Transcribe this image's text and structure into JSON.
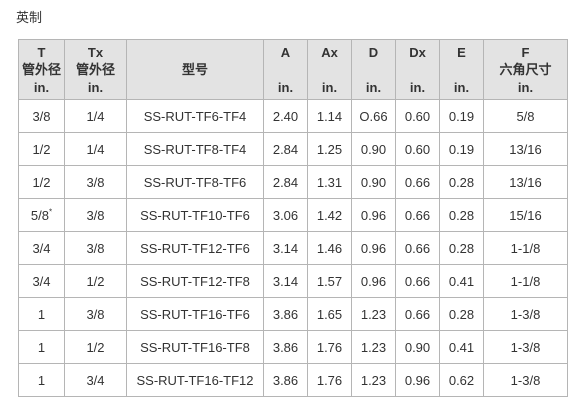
{
  "caption": "英制",
  "columns": [
    {
      "key": "t",
      "lines": [
        "T",
        "管外径",
        "in."
      ]
    },
    {
      "key": "tx",
      "lines": [
        "Tx",
        "管外径",
        "in."
      ]
    },
    {
      "key": "model",
      "lines": [
        "型号"
      ]
    },
    {
      "key": "a",
      "lines": [
        "A",
        "in."
      ]
    },
    {
      "key": "ax",
      "lines": [
        "Ax",
        "in."
      ]
    },
    {
      "key": "d",
      "lines": [
        "D",
        "in."
      ]
    },
    {
      "key": "dx",
      "lines": [
        "Dx",
        "in."
      ]
    },
    {
      "key": "e",
      "lines": [
        "E",
        "in."
      ]
    },
    {
      "key": "f",
      "lines": [
        "F",
        "六角尺寸",
        "in."
      ]
    }
  ],
  "rows": [
    {
      "t": "3/8",
      "t_mark": "",
      "tx": "1/4",
      "model": "SS-RUT-TF6-TF4",
      "a": "2.40",
      "ax": "1.14",
      "d": "O.66",
      "dx": "0.60",
      "e": "0.19",
      "f": "5/8"
    },
    {
      "t": "1/2",
      "t_mark": "",
      "tx": "1/4",
      "model": "SS-RUT-TF8-TF4",
      "a": "2.84",
      "ax": "1.25",
      "d": "0.90",
      "dx": "0.60",
      "e": "0.19",
      "f": "13/16"
    },
    {
      "t": "1/2",
      "t_mark": "",
      "tx": "3/8",
      "model": "SS-RUT-TF8-TF6",
      "a": "2.84",
      "ax": "1.31",
      "d": "0.90",
      "dx": "0.66",
      "e": "0.28",
      "f": "13/16"
    },
    {
      "t": "5/8",
      "t_mark": "*",
      "tx": "3/8",
      "model": "SS-RUT-TF10-TF6",
      "a": "3.06",
      "ax": "1.42",
      "d": "0.96",
      "dx": "0.66",
      "e": "0.28",
      "f": "15/16"
    },
    {
      "t": "3/4",
      "t_mark": "",
      "tx": "3/8",
      "model": "SS-RUT-TF12-TF6",
      "a": "3.14",
      "ax": "1.46",
      "d": "0.96",
      "dx": "0.66",
      "e": "0.28",
      "f": "1-1/8"
    },
    {
      "t": "3/4",
      "t_mark": "",
      "tx": "1/2",
      "model": "SS-RUT-TF12-TF8",
      "a": "3.14",
      "ax": "1.57",
      "d": "0.96",
      "dx": "0.66",
      "e": "0.41",
      "f": "1-1/8"
    },
    {
      "t": "1",
      "t_mark": "",
      "tx": "3/8",
      "model": "SS-RUT-TF16-TF6",
      "a": "3.86",
      "ax": "1.65",
      "d": "1.23",
      "dx": "0.66",
      "e": "0.28",
      "f": "1-3/8"
    },
    {
      "t": "1",
      "t_mark": "",
      "tx": "1/2",
      "model": "SS-RUT-TF16-TF8",
      "a": "3.86",
      "ax": "1.76",
      "d": "1.23",
      "dx": "0.90",
      "e": "0.41",
      "f": "1-3/8"
    },
    {
      "t": "1",
      "t_mark": "",
      "tx": "3/4",
      "model": "SS-RUT-TF16-TF12",
      "a": "3.86",
      "ax": "1.76",
      "d": "1.23",
      "dx": "0.96",
      "e": "0.62",
      "f": "1-3/8"
    }
  ]
}
